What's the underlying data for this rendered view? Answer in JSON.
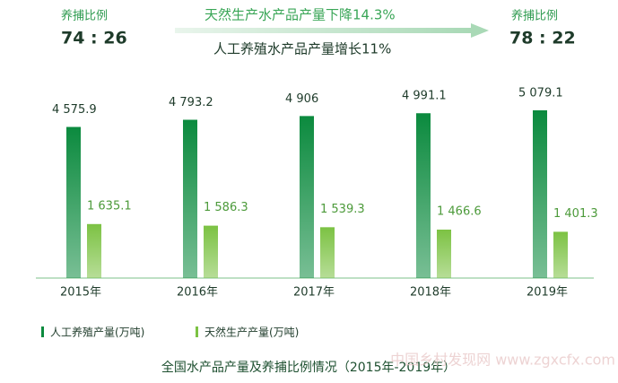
{
  "chart_data": {
    "type": "bar",
    "title": "全国水产品产量及养捕比例情况（2015年-2019年）",
    "categories": [
      "2015年",
      "2016年",
      "2017年",
      "2018年",
      "2019年"
    ],
    "series": [
      {
        "name": "人工养殖产量(万吨)",
        "color": "#0b8a3e",
        "values": [
          4575.9,
          4793.2,
          4906,
          4991.1,
          5079.1
        ],
        "value_labels": [
          "4 575.9",
          "4 793.2",
          "4 906",
          "4 991.1",
          "5 079.1"
        ]
      },
      {
        "name": "天然生产产量(万吨)",
        "color": "#7cc243",
        "values": [
          1635.1,
          1586.3,
          1539.3,
          1466.6,
          1401.3
        ],
        "value_labels": [
          "1 635.1",
          "1 586.3",
          "1 539.3",
          "1 466.6",
          "1 401.3"
        ]
      }
    ],
    "annotations": {
      "left_label": "养捕比例",
      "left_ratio": "74 : 26",
      "right_label": "养捕比例",
      "right_ratio": "78 : 22",
      "wild_change": "天然生产水产品产量下降14.3%",
      "farmed_change": "人工养殖水产品产量增长11%"
    },
    "watermark": "中国乡村发现网 www.zgxcfx.com"
  }
}
